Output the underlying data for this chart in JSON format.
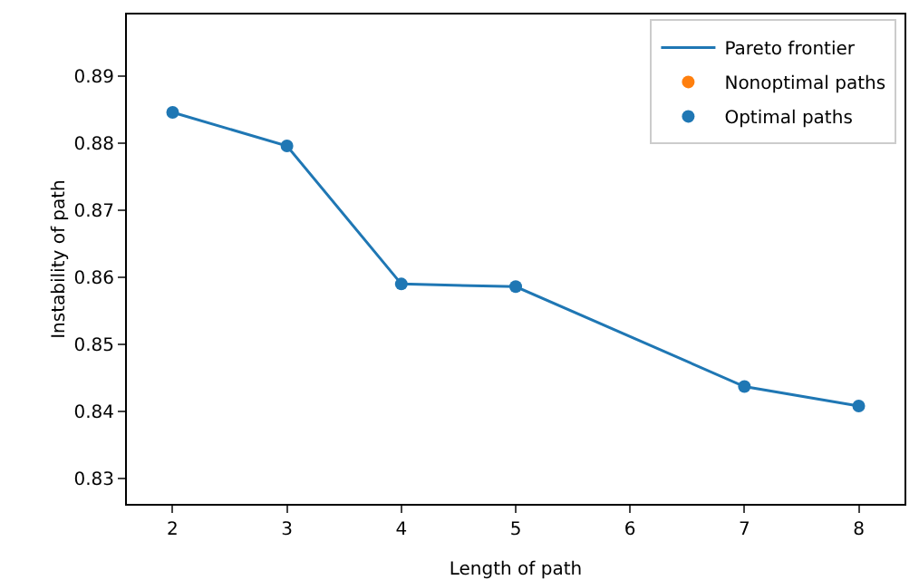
{
  "chart_data": {
    "type": "line",
    "xlabel": "Length of path",
    "ylabel": "Instability of path",
    "x": [
      2,
      3,
      4,
      5,
      7,
      8
    ],
    "series": [
      {
        "name": "Pareto frontier",
        "type": "line",
        "color": "#1f77b4",
        "values": [
          0.8846,
          0.8796,
          0.859,
          0.8586,
          0.8437,
          0.8408
        ],
        "marker": "none"
      },
      {
        "name": "Nonoptimal paths",
        "type": "scatter",
        "color": "#ff7f0e",
        "values": [
          null,
          null,
          null,
          null,
          null,
          null
        ],
        "marker": "circle"
      },
      {
        "name": "Optimal paths",
        "type": "scatter",
        "color": "#1f77b4",
        "values": [
          0.8846,
          0.8796,
          0.859,
          0.8586,
          0.8437,
          0.8408
        ],
        "marker": "circle"
      }
    ],
    "xlim": [
      1.6,
      8.4
    ],
    "xticks": [
      2,
      3,
      4,
      5,
      6,
      7,
      8
    ],
    "ylim": [
      0.8262,
      0.8992
    ],
    "yticks": [
      0.83,
      0.84,
      0.85,
      0.86,
      0.87,
      0.88,
      0.89
    ],
    "grid": false,
    "legend": "top right"
  }
}
